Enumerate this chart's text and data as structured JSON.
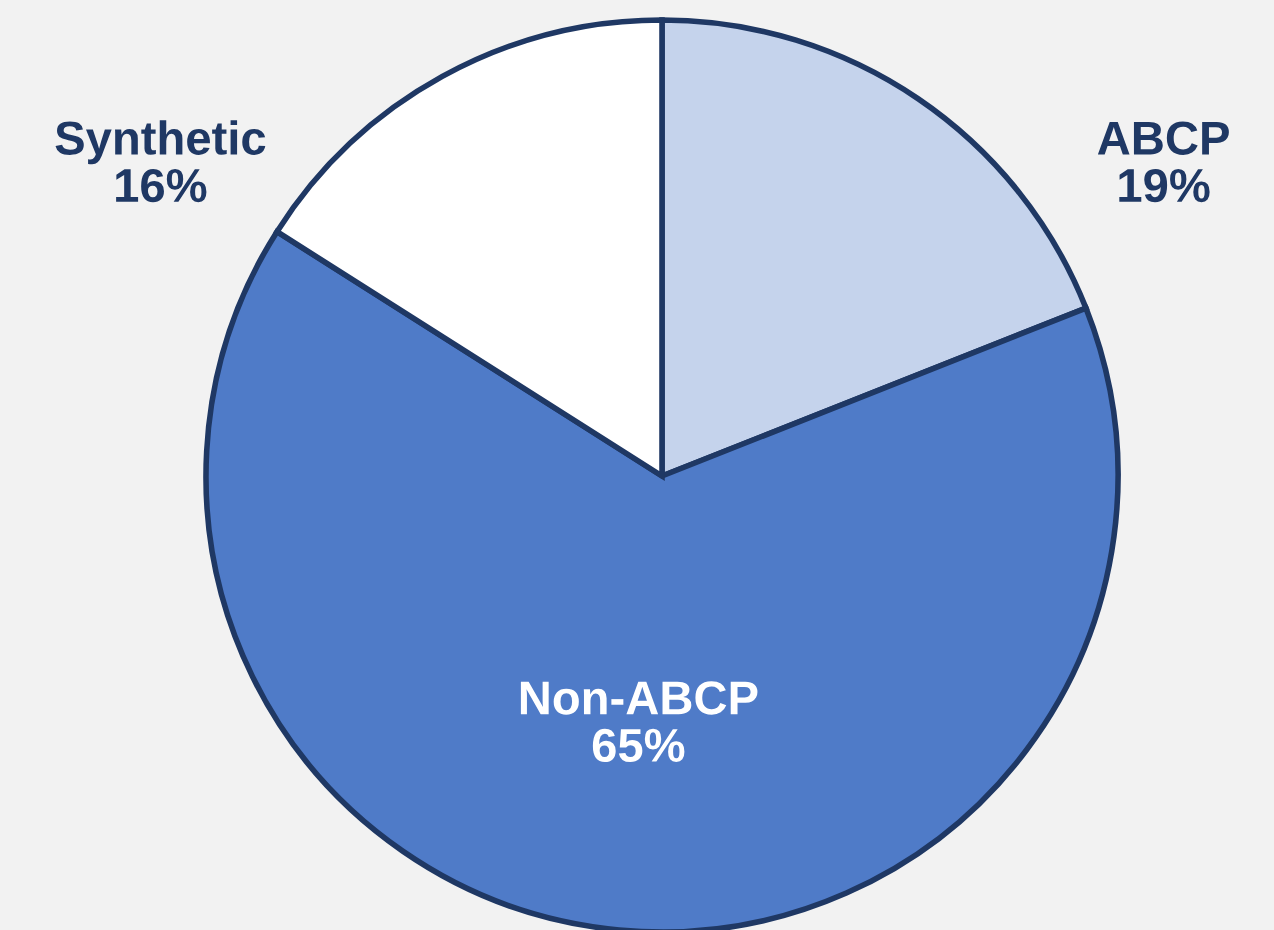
{
  "chart_data": {
    "type": "pie",
    "categories": [
      "ABCP",
      "Non-ABCP",
      "Synthetic"
    ],
    "values": [
      19,
      65,
      16
    ],
    "colors": [
      "#c5d3ec",
      "#4f7bc8",
      "#ffffff"
    ],
    "value_labels": [
      "19%",
      "65%",
      "16%"
    ]
  }
}
